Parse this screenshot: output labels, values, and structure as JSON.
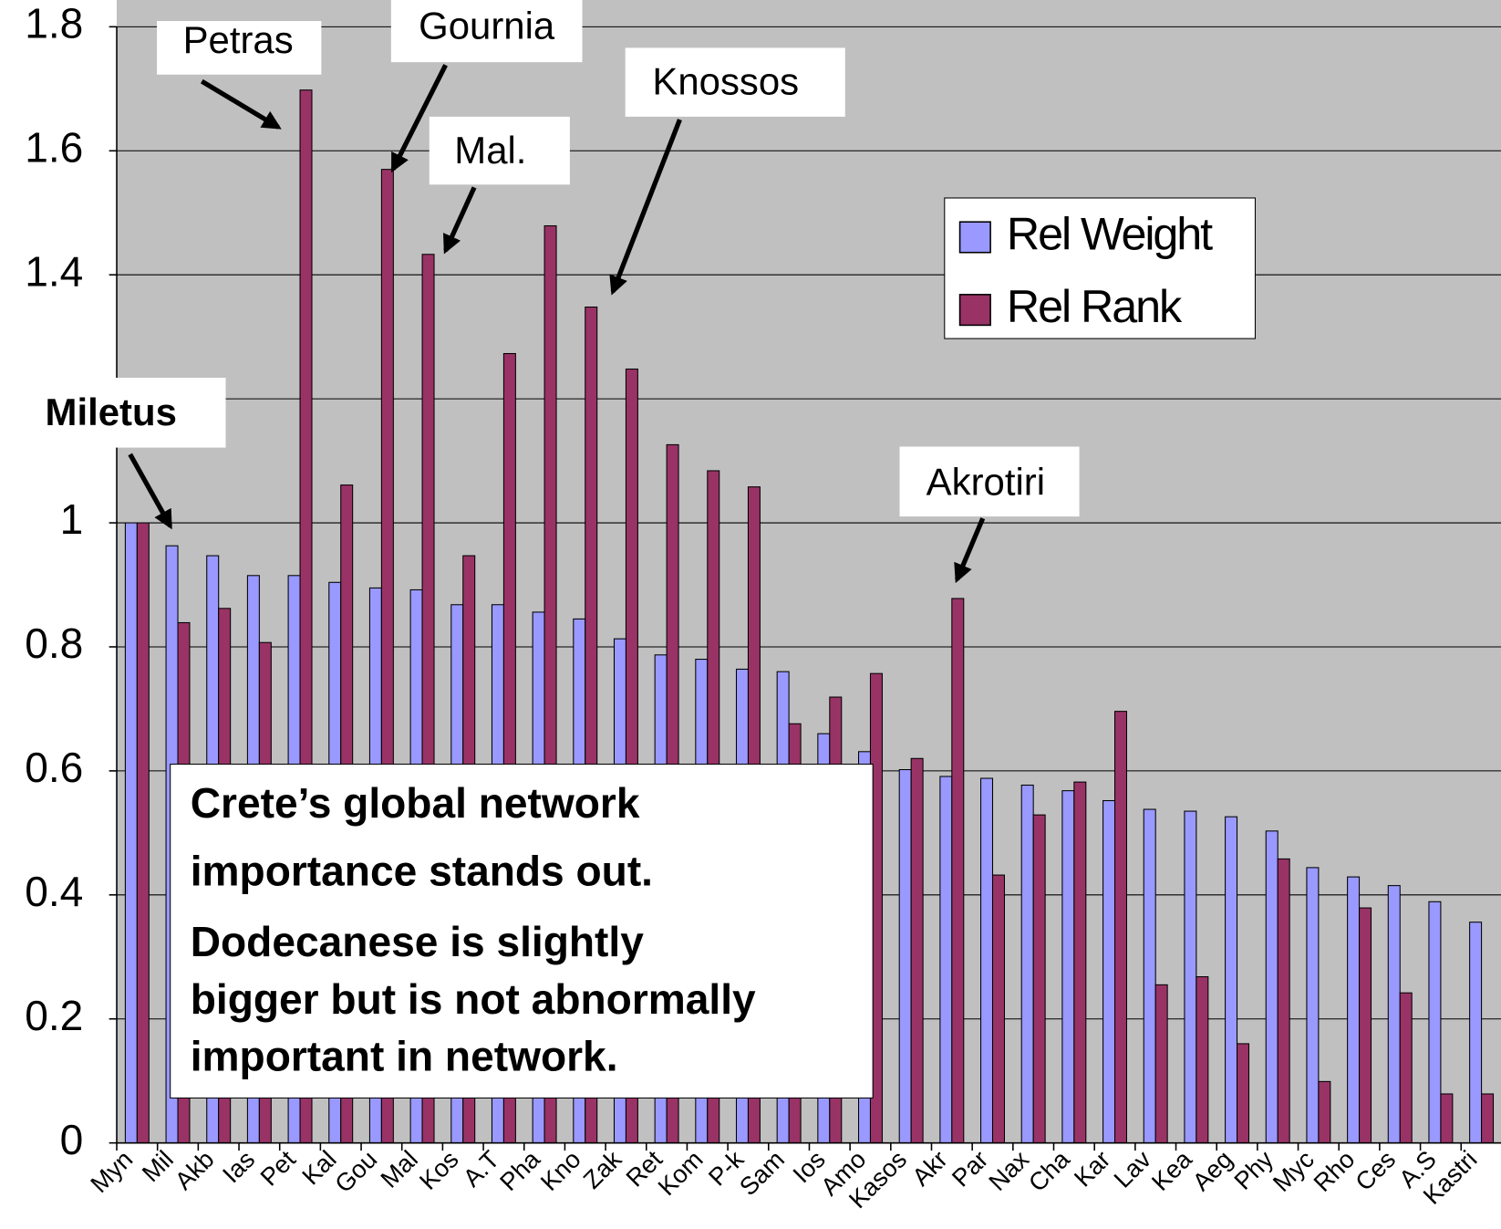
{
  "chart_data": {
    "type": "bar",
    "categories": [
      "Myn",
      "Mil",
      "Akb",
      "Ias",
      "Pet",
      "Kal",
      "Gou",
      "Mal",
      "Kos",
      "A.T",
      "Pha",
      "Kno",
      "Zak",
      "Ret",
      "Kom",
      "P-k",
      "Sam",
      "Ios",
      "Amo",
      "Kasos",
      "Akr",
      "Par",
      "Nax",
      "Cha",
      "Kar",
      "Lav",
      "Kea",
      "Aeg",
      "Phy",
      "Myc",
      "Rho",
      "Ces",
      "A.S",
      "Kastri"
    ],
    "series": [
      {
        "name": "Rel Weight",
        "color": "#9999ff",
        "values": [
          1,
          0.963,
          0.947,
          0.915,
          0.915,
          0.904,
          0.895,
          0.892,
          0.868,
          0.868,
          0.856,
          0.845,
          0.813,
          0.787,
          0.78,
          0.764,
          0.76,
          0.66,
          0.631,
          0.602,
          0.591,
          0.588,
          0.577,
          0.568,
          0.552,
          0.538,
          0.535,
          0.526,
          0.503,
          0.444,
          0.429,
          0.415,
          0.389,
          0.356
        ]
      },
      {
        "name": "Rel Rank",
        "color": "#993366",
        "values": [
          1,
          0.839,
          0.862,
          0.807,
          1.698,
          1.061,
          1.57,
          1.433,
          0.947,
          1.273,
          1.479,
          1.348,
          1.248,
          1.126,
          1.084,
          1.058,
          0.676,
          0.719,
          0.757,
          0.62,
          0.878,
          0.432,
          0.529,
          0.582,
          0.696,
          0.255,
          0.268,
          0.16,
          0.458,
          0.099,
          0.379,
          0.242,
          0.079,
          0.079
        ]
      }
    ],
    "ylim": [
      0,
      1.8
    ],
    "yticks": [
      0,
      0.2,
      0.4,
      0.6,
      0.8,
      1,
      1.2,
      1.4,
      1.6,
      1.8
    ],
    "grid": true,
    "legend": "upper right",
    "annotations": [
      {
        "text": "Petras"
      },
      {
        "text": "Gournia"
      },
      {
        "text": "Mal."
      },
      {
        "text": "Knossos"
      },
      {
        "text": "Miletus"
      },
      {
        "text": "Akrotiri"
      }
    ],
    "note": [
      "Crete’s global network",
      "importance stands out.",
      "Dodecanese is slightly",
      "bigger but is not abnormally",
      "important in network."
    ]
  }
}
